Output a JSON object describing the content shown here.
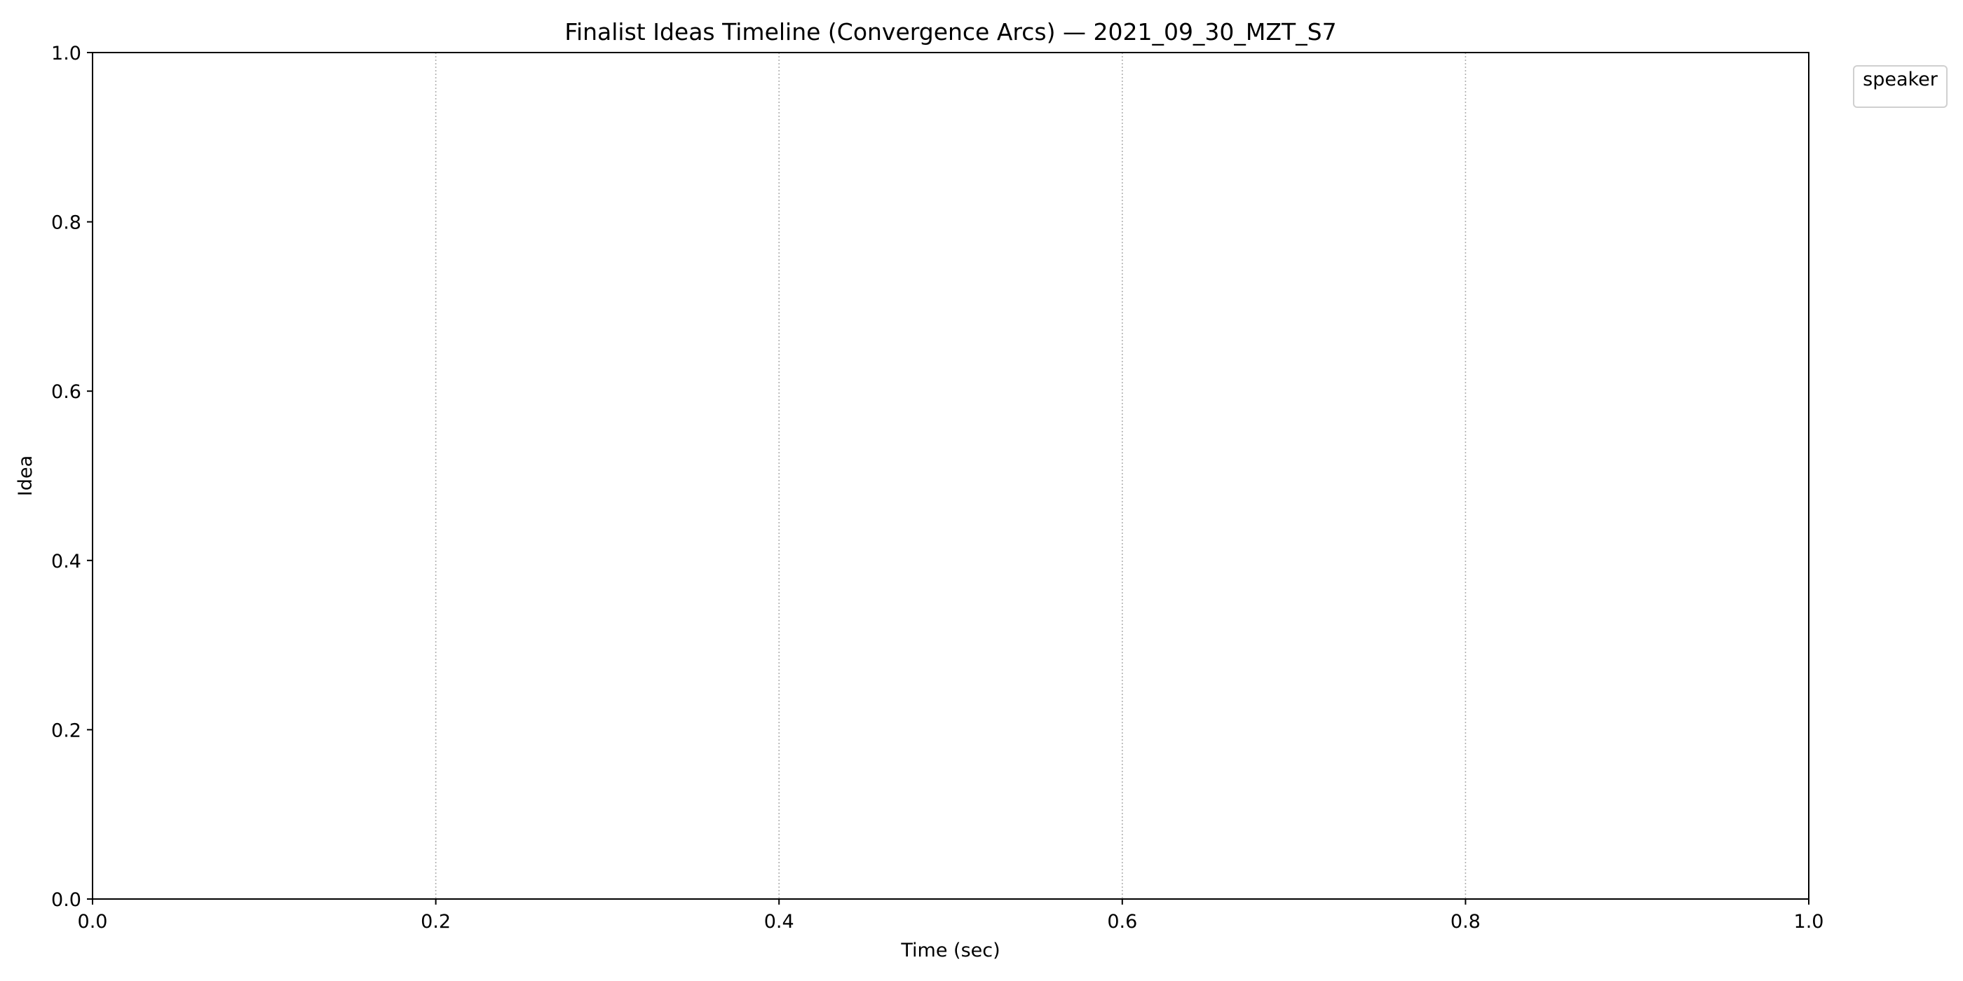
{
  "chart_data": {
    "type": "line",
    "title": "Finalist Ideas Timeline (Convergence Arcs) — 2021_09_30_MZT_S7",
    "xlabel": "Time (sec)",
    "ylabel": "Idea",
    "xlim": [
      0.0,
      1.0
    ],
    "ylim": [
      0.0,
      1.0
    ],
    "x_ticks": [
      "0.0",
      "0.2",
      "0.4",
      "0.6",
      "0.8",
      "1.0"
    ],
    "y_ticks": [
      "0.0",
      "0.2",
      "0.4",
      "0.6",
      "0.8",
      "1.0"
    ],
    "vertical_grid": true,
    "horizontal_grid": false,
    "grid_style": "dotted",
    "legend": {
      "title": "speaker",
      "placement": "outside upper-right",
      "entries": []
    },
    "series": []
  }
}
